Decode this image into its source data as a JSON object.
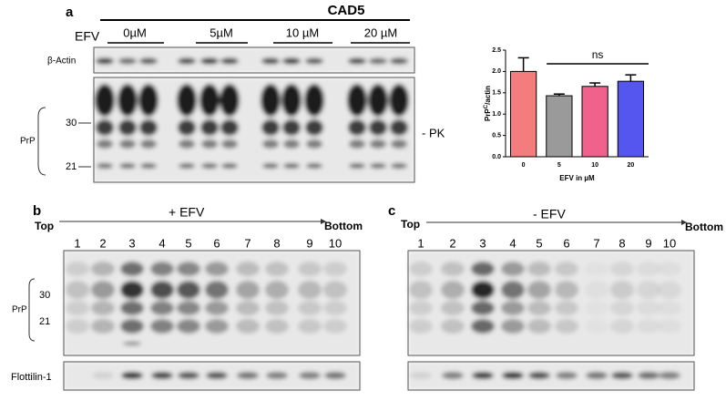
{
  "panel_a": {
    "letter": "a",
    "cell_line": "CAD5",
    "treatment": "EFV",
    "concentrations": [
      "0µM",
      "5µM",
      "10 µM",
      "20 µM"
    ],
    "actin_label": "β-Actin",
    "prp_label": "PrP",
    "marker_30": "30",
    "marker_21": "21",
    "pk_label": "- PK"
  },
  "chart_data": {
    "type": "bar",
    "y_label_parts": [
      "PrP",
      "C",
      "/actin"
    ],
    "x_label": "EFV in µM",
    "categories": [
      "0",
      "5",
      "10",
      "20"
    ],
    "values": [
      2.0,
      1.43,
      1.65,
      1.77
    ],
    "errors": [
      0.32,
      0.04,
      0.08,
      0.15
    ],
    "colors": [
      "#f47c7c",
      "#9a9a9a",
      "#f0628c",
      "#5555f0"
    ],
    "ylim": [
      0,
      2.5
    ],
    "yticks": [
      {
        "value": 0,
        "label": "0.0"
      },
      {
        "value": 0.5,
        "label": "0.5"
      },
      {
        "value": 1,
        "label": "1.0"
      },
      {
        "value": 1.5,
        "label": "1.5"
      },
      {
        "value": 2,
        "label": "2.0"
      },
      {
        "value": 2.5,
        "label": "2.5"
      }
    ],
    "annotation": "ns"
  },
  "panel_b": {
    "letter": "b",
    "condition": "+ EFV",
    "top": "Top",
    "bottom": "Bottom",
    "lanes": [
      "1",
      "2",
      "3",
      "4",
      "5",
      "6",
      "7",
      "8",
      "9",
      "10"
    ],
    "prp_label": "PrP",
    "marker_30": "30",
    "marker_21": "21",
    "flotillin_label": "Flottilin-1"
  },
  "panel_c": {
    "letter": "c",
    "condition": "- EFV",
    "top": "Top",
    "bottom": "Bottom",
    "lanes": [
      "1",
      "2",
      "3",
      "4",
      "5",
      "6",
      "7",
      "8",
      "9",
      "10"
    ]
  }
}
